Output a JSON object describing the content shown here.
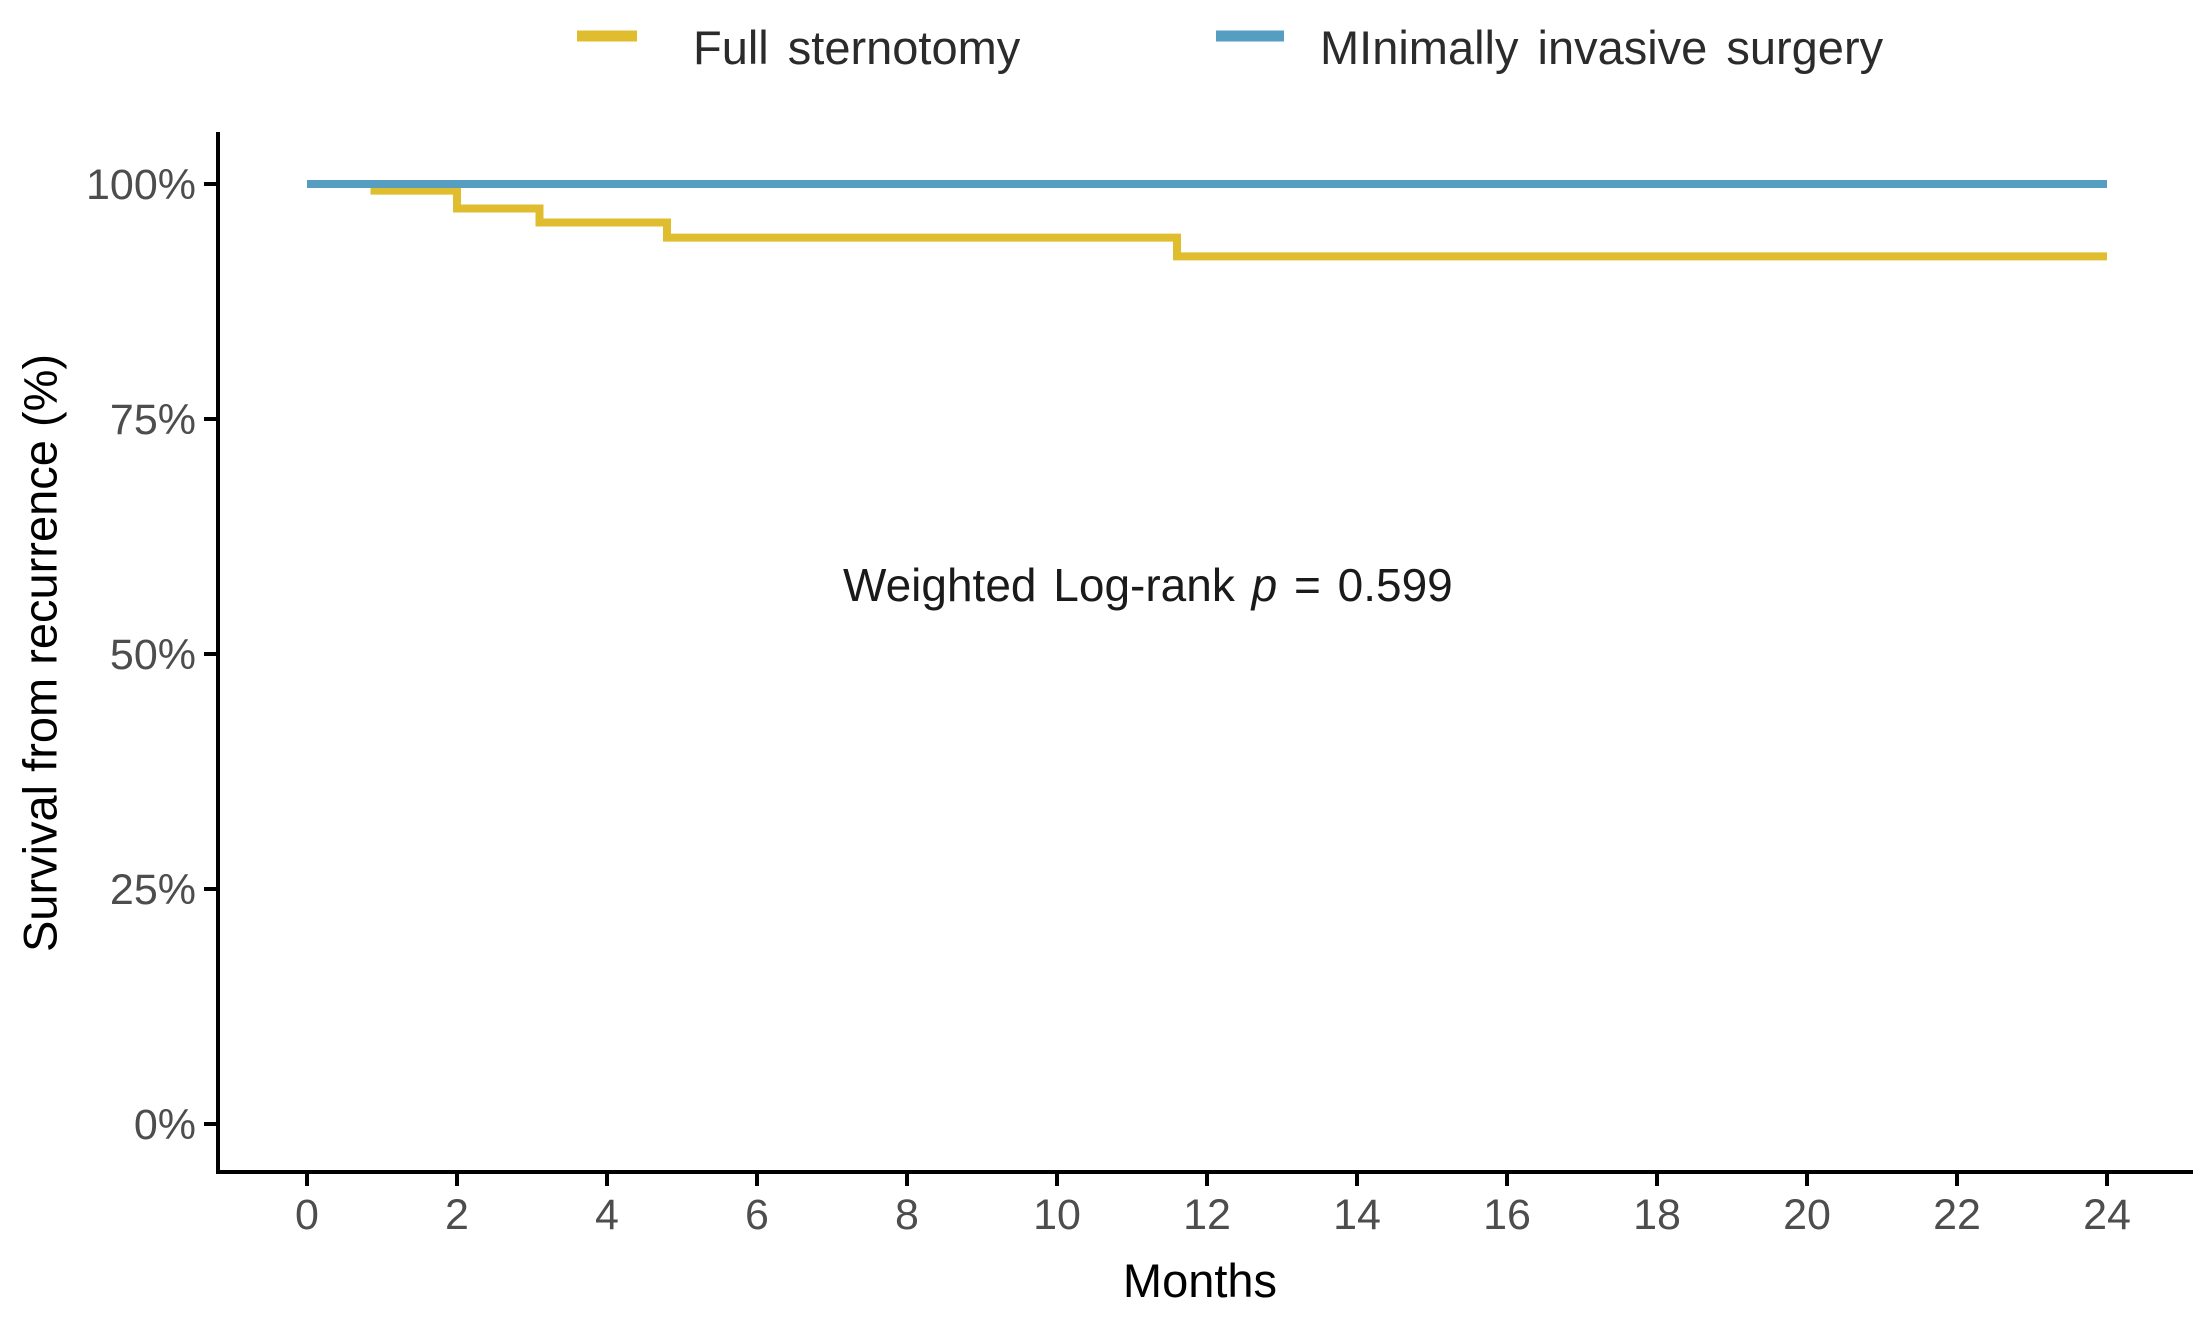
{
  "chart_data": {
    "type": "line",
    "subtype": "kaplan-meier-step-curves",
    "title": "",
    "xlabel": "Months",
    "ylabel": "Survival from recurrence (%)",
    "xlim": [
      0,
      24
    ],
    "ylim": [
      0,
      100
    ],
    "grid": "off",
    "legend_position": "top",
    "annotation": "Weighted Log-rank p = 0.599",
    "annotation_parts": {
      "prefix": "Weighted Log-rank ",
      "stat_symbol": "p",
      "suffix": " = 0.599"
    },
    "x_ticks": [
      0,
      2,
      4,
      6,
      8,
      10,
      12,
      14,
      16,
      18,
      20,
      22,
      24
    ],
    "y_ticks": {
      "labels": [
        "0%",
        "25%",
        "50%",
        "75%",
        "100%"
      ],
      "values": [
        0,
        25,
        50,
        75,
        100
      ]
    },
    "series": [
      {
        "name": "Full sternotomy",
        "color": "#dfbd2f",
        "step_points_month_percent": [
          [
            0,
            100
          ],
          [
            0.9,
            99.3
          ],
          [
            2,
            97.4
          ],
          [
            3.1,
            95.9
          ],
          [
            4.8,
            94.3
          ],
          [
            11.6,
            92.3
          ],
          [
            24,
            92.3
          ]
        ]
      },
      {
        "name": "MInimally invasive surgery",
        "color": "#569dc2",
        "step_points_month_percent": [
          [
            0,
            100
          ],
          [
            24,
            100
          ]
        ]
      }
    ]
  }
}
